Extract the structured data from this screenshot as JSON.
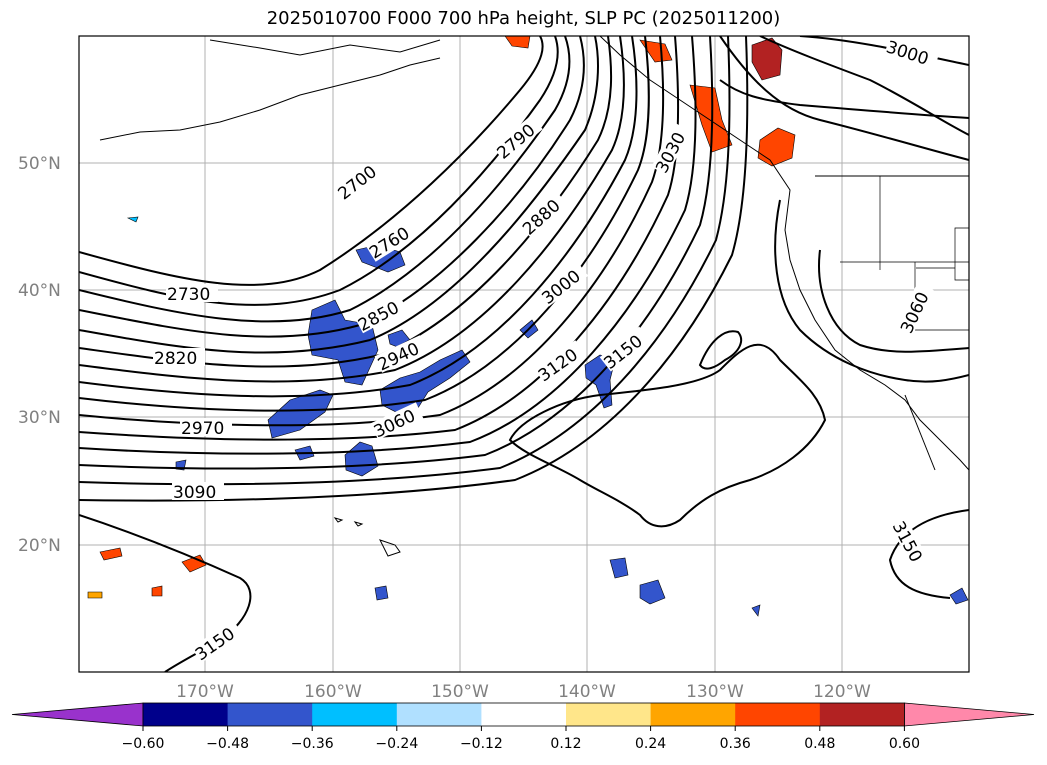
{
  "title": "2025010700 F000 700 hPa height, SLP PC (2025011200)",
  "lat_labels": [
    "50°N",
    "40°N",
    "30°N",
    "20°N"
  ],
  "lon_labels": [
    "170°W",
    "160°W",
    "150°W",
    "140°W",
    "130°W",
    "120°W"
  ],
  "contour_labels": [
    "2700",
    "2760",
    "2730",
    "2790",
    "2850",
    "2820",
    "2880",
    "2940",
    "2970",
    "3000",
    "3030",
    "3060",
    "3090",
    "3120",
    "3150",
    "3150",
    "3000",
    "3060",
    "3150"
  ],
  "colorbar": {
    "ticks": [
      "−0.60",
      "−0.48",
      "−0.36",
      "−0.24",
      "−0.12",
      "0.12",
      "0.24",
      "0.36",
      "0.48",
      "0.60"
    ],
    "colors": [
      "#9932cc",
      "#00008b",
      "#3355cc",
      "#00bfff",
      "#b0e0ff",
      "#ffffff",
      "#ffe68a",
      "#ffa500",
      "#ff4500",
      "#b22222",
      "#ff88aa"
    ]
  },
  "chart_data": {
    "type": "map",
    "projection": "PlateCarree",
    "lon_range": [
      -180,
      -110
    ],
    "lat_range": [
      10,
      60
    ],
    "gridlines": true,
    "contour_field": "700 hPa height",
    "shaded_field": "SLP PC",
    "contour_levels_labeled": [
      2700,
      2730,
      2760,
      2790,
      2820,
      2850,
      2880,
      2940,
      2970,
      3000,
      3030,
      3060,
      3090,
      3120,
      3150
    ],
    "colorbar_levels": [
      -0.6,
      -0.48,
      -0.36,
      -0.24,
      -0.12,
      0.12,
      0.24,
      0.36,
      0.48,
      0.6
    ],
    "colorbar_extend": "both"
  }
}
